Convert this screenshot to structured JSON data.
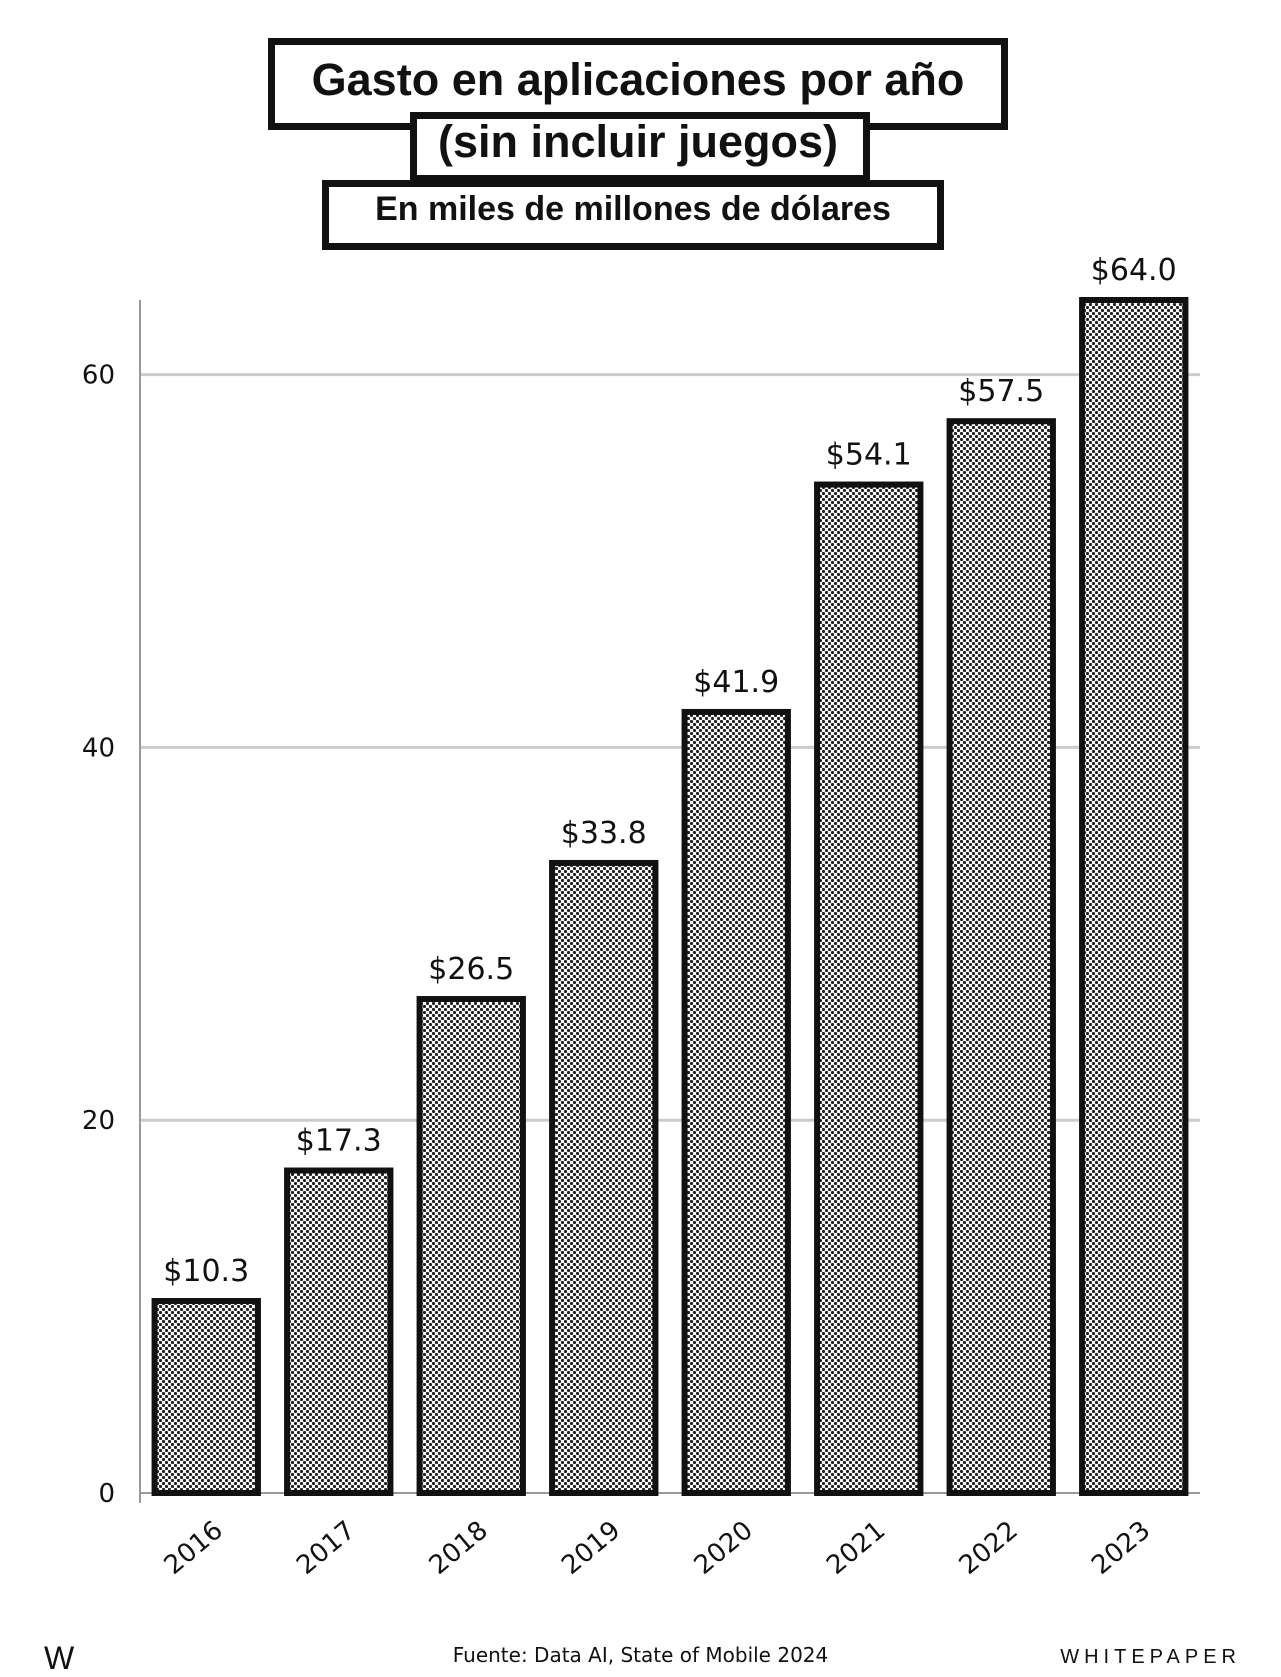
{
  "header": {
    "title_line1": "Gasto en aplicaciones por año",
    "title_line2": "(sin incluir juegos)",
    "subtitle": "En miles de millones de dólares"
  },
  "footer": {
    "logo": "W",
    "source": "Fuente: Data AI, State of Mobile 2024",
    "brand": "WHITEPAPER"
  },
  "chart_data": {
    "type": "bar",
    "title": "Gasto en aplicaciones por año (sin incluir juegos)",
    "subtitle": "En miles de millones de dólares",
    "xlabel": "",
    "ylabel": "",
    "categories": [
      "2016",
      "2017",
      "2018",
      "2019",
      "2020",
      "2021",
      "2022",
      "2023"
    ],
    "values": [
      10.3,
      17.3,
      26.5,
      33.8,
      41.9,
      54.1,
      57.5,
      64.0
    ],
    "data_labels": [
      "$10.3",
      "$17.3",
      "$26.5",
      "$33.8",
      "$41.9",
      "$54.1",
      "$57.5",
      "$64.0"
    ],
    "ylim": [
      0,
      64
    ],
    "yticks": [
      0,
      20,
      40,
      60
    ],
    "grid": true,
    "bar_fill": "#c8c8c8",
    "bar_stroke": "#111111",
    "grid_color": "#cccccc"
  }
}
